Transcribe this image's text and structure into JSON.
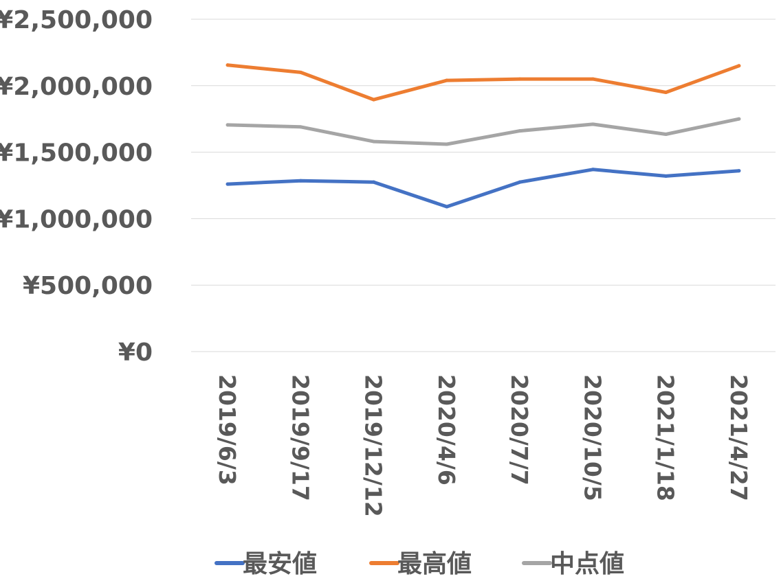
{
  "chart_data": {
    "type": "line",
    "categories": [
      "2019/6/3",
      "2019/9/17",
      "2019/12/12",
      "2020/4/6",
      "2020/7/7",
      "2020/10/5",
      "2021/1/18",
      "2021/4/27"
    ],
    "ylim": [
      0,
      2500000
    ],
    "y_ticks": [
      0,
      500000,
      1000000,
      1500000,
      2000000,
      2500000
    ],
    "y_tick_labels": [
      "¥0",
      "¥500,000",
      "¥1,000,000",
      "¥1,500,000",
      "¥2,000,000",
      "¥2,500,000"
    ],
    "grid": true,
    "legend_position": "bottom",
    "series": [
      {
        "name": "最安値",
        "color": "#4472C4",
        "values": [
          1260000,
          1285000,
          1275000,
          1090000,
          1275000,
          1370000,
          1320000,
          1360000
        ]
      },
      {
        "name": "最高値",
        "color": "#ED7D31",
        "values": [
          2155000,
          2100000,
          1895000,
          2040000,
          2050000,
          2050000,
          1950000,
          2150000
        ]
      },
      {
        "name": "中点値",
        "color": "#A5A5A5",
        "values": [
          1705000,
          1690000,
          1580000,
          1560000,
          1660000,
          1710000,
          1635000,
          1750000
        ]
      }
    ]
  }
}
